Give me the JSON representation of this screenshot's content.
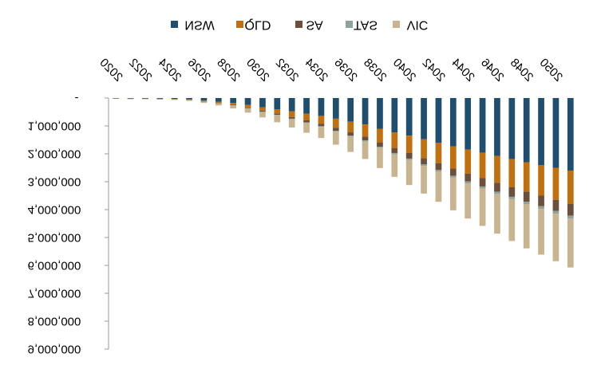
{
  "chart_data": {
    "type": "bar",
    "stacked": true,
    "orientation": "mirrored",
    "title": "",
    "xlabel": "",
    "ylabel": "",
    "legend_position": "top",
    "grid": false,
    "ylim": [
      0,
      9000000
    ],
    "y_ticks": [
      {
        "value": 0,
        "label": "-"
      },
      {
        "value": 1000000,
        "label": "1,000,000"
      },
      {
        "value": 2000000,
        "label": "2,000,000"
      },
      {
        "value": 3000000,
        "label": "3,000,000"
      },
      {
        "value": 4000000,
        "label": "4,000,000"
      },
      {
        "value": 5000000,
        "label": "5,000,000"
      },
      {
        "value": 6000000,
        "label": "6,000,000"
      },
      {
        "value": 7000000,
        "label": "7,000,000"
      },
      {
        "value": 8000000,
        "label": "8,000,000"
      },
      {
        "value": 9000000,
        "label": "9,000,000"
      }
    ],
    "categories": [
      "2020",
      "2021",
      "2022",
      "2023",
      "2024",
      "2025",
      "2026",
      "2027",
      "2028",
      "2029",
      "2030",
      "2031",
      "2032",
      "2033",
      "2034",
      "2035",
      "2036",
      "2037",
      "2038",
      "2039",
      "2040",
      "2041",
      "2042",
      "2043",
      "2044",
      "2045",
      "2046",
      "2047",
      "2048",
      "2049",
      "2050",
      "2051"
    ],
    "labeled_categories": [
      "2020",
      "2022",
      "2024",
      "2026",
      "2028",
      "2030",
      "2032",
      "2034",
      "2036",
      "2038",
      "2040",
      "2042",
      "2044",
      "2046",
      "2048",
      "2050"
    ],
    "series": [
      {
        "name": "NSW",
        "color": "#1F4E6E",
        "values": [
          10000,
          15000,
          20000,
          25000,
          35000,
          50000,
          90000,
          130000,
          180000,
          250000,
          330000,
          400000,
          480000,
          560000,
          640000,
          740000,
          850000,
          950000,
          1100000,
          1230000,
          1350000,
          1480000,
          1600000,
          1730000,
          1850000,
          1960000,
          2080000,
          2190000,
          2300000,
          2400000,
          2500000,
          2600000
        ]
      },
      {
        "name": "QLD",
        "color": "#C0700F",
        "values": [
          3000,
          4000,
          5000,
          7000,
          10000,
          15000,
          25000,
          40000,
          60000,
          90000,
          120000,
          160000,
          200000,
          240000,
          280000,
          330000,
          380000,
          430000,
          490000,
          560000,
          620000,
          680000,
          740000,
          800000,
          860000,
          910000,
          960000,
          1010000,
          1060000,
          1100000,
          1150000,
          1200000
        ]
      },
      {
        "name": "SA",
        "color": "#6B4F3A",
        "values": [
          1000,
          1000,
          2000,
          2000,
          3000,
          5000,
          8000,
          12000,
          18000,
          25000,
          35000,
          45000,
          60000,
          75000,
          90000,
          105000,
          120000,
          140000,
          160000,
          180000,
          200000,
          220000,
          240000,
          260000,
          280000,
          300000,
          320000,
          340000,
          360000,
          380000,
          400000,
          420000
        ]
      },
      {
        "name": "TAS",
        "color": "#8FA39B",
        "values": [
          500,
          500,
          1000,
          1000,
          1000,
          2000,
          3000,
          4000,
          6000,
          8000,
          10000,
          13000,
          16000,
          20000,
          24000,
          28000,
          32000,
          36000,
          40000,
          45000,
          50000,
          55000,
          60000,
          65000,
          70000,
          75000,
          80000,
          85000,
          90000,
          95000,
          100000,
          105000
        ]
      },
      {
        "name": "VIC",
        "color": "#C8B48F",
        "values": [
          5000,
          7000,
          10000,
          15000,
          20000,
          30000,
          50000,
          80000,
          110000,
          150000,
          200000,
          250000,
          300000,
          350000,
          400000,
          470000,
          550000,
          630000,
          720000,
          810000,
          900000,
          990000,
          1080000,
          1170000,
          1260000,
          1340000,
          1420000,
          1500000,
          1580000,
          1640000,
          1700000,
          1750000
        ]
      }
    ]
  }
}
